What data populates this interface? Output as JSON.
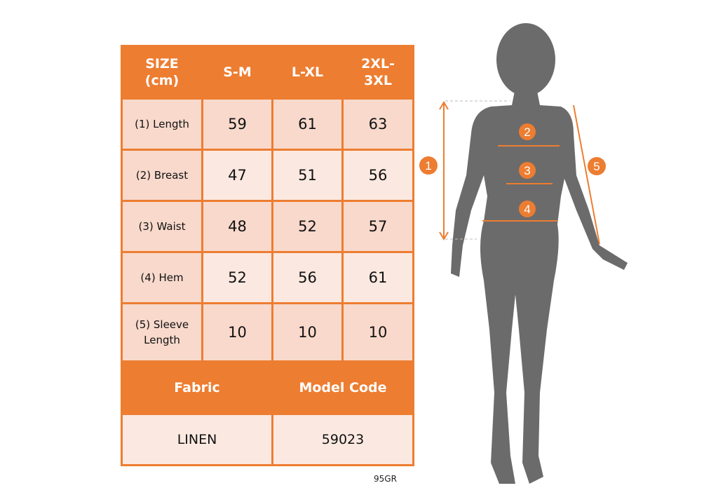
{
  "table": {
    "headers": [
      "SIZE\n(cm)",
      "S-M",
      "L-XL",
      "2XL-\n3XL"
    ],
    "rows": [
      {
        "label": "(1) Length",
        "values": [
          "59",
          "61",
          "63"
        ]
      },
      {
        "label": "(2) Breast",
        "values": [
          "47",
          "51",
          "56"
        ]
      },
      {
        "label": "(3) Waist",
        "values": [
          "48",
          "52",
          "57"
        ]
      },
      {
        "label": "(4) Hem",
        "values": [
          "52",
          "56",
          "61"
        ]
      },
      {
        "label": "(5) Sleeve Length",
        "values": [
          "10",
          "10",
          "10"
        ]
      }
    ],
    "footer_headers": [
      "Fabric",
      "Model Code"
    ],
    "footer_values": [
      "LINEN",
      "59023"
    ]
  },
  "product_code": "95GR",
  "figure": {
    "markers": [
      "1",
      "2",
      "3",
      "4",
      "5"
    ],
    "accent_color": "#ED7D31",
    "silhouette_color": "#6B6B6B"
  }
}
